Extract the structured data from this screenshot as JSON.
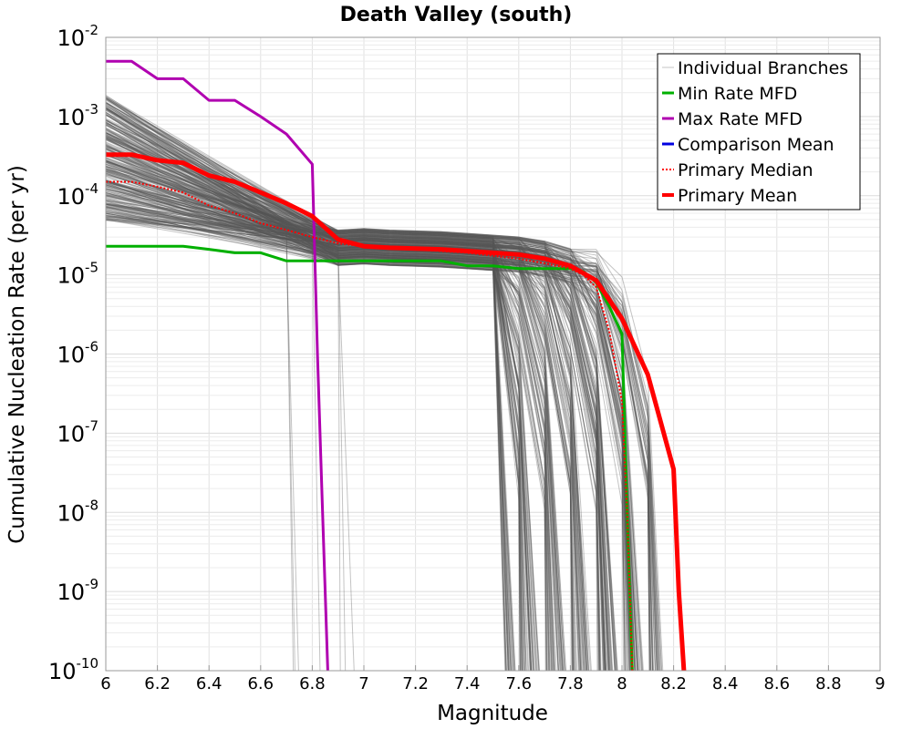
{
  "chart_data": {
    "type": "line",
    "title": "Death Valley (south)",
    "xlabel": "Magnitude",
    "ylabel": "Cumulative Nucleation Rate (per yr)",
    "xlim": [
      6,
      9
    ],
    "ylim": [
      1e-10,
      0.01
    ],
    "yscale": "log",
    "grid": true,
    "legend_position": "top-right",
    "x_ticks": [
      "6",
      "6.2",
      "6.4",
      "6.6",
      "6.8",
      "7",
      "7.2",
      "7.4",
      "7.6",
      "7.8",
      "8",
      "8.2",
      "8.4",
      "8.6",
      "8.8",
      "9"
    ],
    "y_ticks": [
      {
        "base": "10",
        "exp": "-10",
        "value": 1e-10
      },
      {
        "base": "10",
        "exp": "-9",
        "value": 1e-09
      },
      {
        "base": "10",
        "exp": "-8",
        "value": 1e-08
      },
      {
        "base": "10",
        "exp": "-7",
        "value": 1e-07
      },
      {
        "base": "10",
        "exp": "-6",
        "value": 1e-06
      },
      {
        "base": "10",
        "exp": "-5",
        "value": 1e-05
      },
      {
        "base": "10",
        "exp": "-4",
        "value": 0.0001
      },
      {
        "base": "10",
        "exp": "-3",
        "value": 0.001
      },
      {
        "base": "10",
        "exp": "-2",
        "value": 0.01
      }
    ],
    "series": [
      {
        "name": "Min Rate MFD",
        "color": "#00b000",
        "width": 3,
        "dash": "",
        "x": [
          6.0,
          6.3,
          6.4,
          6.5,
          6.6,
          6.7,
          7.0,
          7.3,
          7.4,
          7.5,
          7.6,
          7.7,
          7.8,
          7.85,
          7.9,
          7.95,
          8.0,
          8.02,
          8.04
        ],
        "y": [
          2.3e-05,
          2.3e-05,
          2.1e-05,
          1.9e-05,
          1.9e-05,
          1.5e-05,
          1.5e-05,
          1.5e-05,
          1.3e-05,
          1.3e-05,
          1.2e-05,
          1.2e-05,
          1.2e-05,
          1.1e-05,
          8e-06,
          4e-06,
          1.8e-06,
          1e-08,
          1e-10
        ]
      },
      {
        "name": "Max Rate MFD",
        "color": "#b000b0",
        "width": 3,
        "dash": "",
        "x": [
          6.0,
          6.1,
          6.2,
          6.3,
          6.4,
          6.5,
          6.6,
          6.7,
          6.8,
          6.82,
          6.84,
          6.86
        ],
        "y": [
          0.005,
          0.005,
          0.003,
          0.003,
          0.0016,
          0.0016,
          0.001,
          0.0006,
          0.00025,
          1e-06,
          1e-08,
          1e-10
        ]
      },
      {
        "name": "Comparison Mean",
        "color": "#0000e0",
        "width": 3,
        "dash": "",
        "x": [],
        "y": []
      },
      {
        "name": "Primary Median",
        "color": "#ff0000",
        "width": 2,
        "dash": "2,2",
        "x": [
          6.0,
          6.1,
          6.2,
          6.3,
          6.4,
          6.5,
          6.6,
          6.7,
          6.8,
          6.9,
          7.0,
          7.2,
          7.4,
          7.6,
          7.7,
          7.8,
          7.85,
          7.9,
          7.95,
          8.0,
          8.02,
          8.04
        ],
        "y": [
          0.00015,
          0.00015,
          0.00013,
          0.00011,
          7.5e-05,
          6e-05,
          4.5e-05,
          3.7e-05,
          3e-05,
          2.5e-05,
          2.3e-05,
          2.1e-05,
          1.9e-05,
          1.6e-05,
          1.4e-05,
          1.2e-05,
          1e-05,
          7e-06,
          2e-06,
          2.5e-07,
          1e-08,
          1e-10
        ]
      },
      {
        "name": "Primary Mean",
        "color": "#ff0000",
        "width": 5,
        "dash": "",
        "x": [
          6.0,
          6.1,
          6.2,
          6.3,
          6.4,
          6.5,
          6.6,
          6.7,
          6.8,
          6.9,
          7.0,
          7.1,
          7.2,
          7.3,
          7.4,
          7.5,
          7.6,
          7.7,
          7.8,
          7.9,
          8.0,
          8.1,
          8.2,
          8.22,
          8.24
        ],
        "y": [
          0.00033,
          0.00033,
          0.00028,
          0.00026,
          0.00018,
          0.00015,
          0.00011,
          8e-05,
          5.5e-05,
          2.8e-05,
          2.3e-05,
          2.2e-05,
          2.15e-05,
          2.1e-05,
          2e-05,
          1.9e-05,
          1.8e-05,
          1.6e-05,
          1.3e-05,
          8.5e-06,
          2.8e-06,
          5.5e-07,
          3.5e-08,
          1e-09,
          1e-10
        ]
      }
    ],
    "background_series": {
      "name": "Individual Branches",
      "color": "#555555",
      "count": 320
    }
  }
}
